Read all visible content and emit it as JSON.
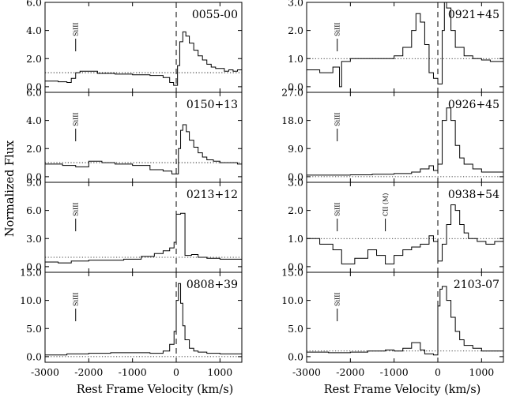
{
  "figure": {
    "ylabel": "Normalized Flux",
    "xlabel": "Rest Frame Velocity (km/s)"
  },
  "chart_data": [
    {
      "type": "line",
      "column": "left",
      "row": 0,
      "name": "0055-00",
      "xlim": [
        -3000,
        1500
      ],
      "ylim": [
        -0.4,
        6.0
      ],
      "ytick_values": [
        0,
        2,
        4,
        6
      ],
      "yticks": [
        "0.0",
        "2.0",
        "4.0",
        "6.0"
      ],
      "continuum": 1.0,
      "lines": [
        {
          "label": "SiIII",
          "velocity": -2300
        }
      ],
      "x": [
        -3000,
        -2700,
        -2500,
        -2400,
        -2300,
        -2200,
        -2100,
        -1800,
        -1400,
        -1000,
        -600,
        -300,
        -150,
        -60,
        30,
        80,
        150,
        220,
        300,
        400,
        500,
        600,
        700,
        800,
        900,
        1000,
        1100,
        1200,
        1300,
        1400,
        1500
      ],
      "y": [
        0.4,
        0.35,
        0.3,
        0.6,
        1.0,
        1.1,
        1.1,
        0.95,
        0.9,
        0.85,
        0.8,
        0.65,
        0.3,
        0.1,
        1.5,
        3.2,
        3.9,
        3.6,
        3.1,
        2.6,
        2.2,
        1.9,
        1.6,
        1.4,
        1.3,
        1.3,
        1.1,
        1.2,
        1.1,
        1.2,
        1.3
      ]
    },
    {
      "type": "line",
      "column": "left",
      "row": 1,
      "name": "0150+13",
      "xlim": [
        -3000,
        1500
      ],
      "ylim": [
        -0.4,
        6.0
      ],
      "ytick_values": [
        0,
        2,
        4,
        6
      ],
      "yticks": [
        "0.0",
        "2.0",
        "4.0",
        "6.0"
      ],
      "continuum": 1.0,
      "lines": [
        {
          "label": "SiIII",
          "velocity": -2300
        }
      ],
      "x": [
        -3000,
        -2600,
        -2300,
        -2000,
        -1700,
        -1400,
        -1000,
        -600,
        -300,
        -100,
        50,
        100,
        150,
        230,
        300,
        400,
        500,
        600,
        700,
        850,
        1000,
        1200,
        1400,
        1500
      ],
      "y": [
        0.9,
        0.8,
        0.7,
        1.1,
        1.0,
        0.9,
        0.8,
        0.5,
        0.4,
        0.2,
        2.0,
        3.3,
        3.7,
        3.2,
        2.6,
        2.1,
        1.7,
        1.4,
        1.2,
        1.1,
        1.0,
        1.0,
        0.9,
        0.9
      ]
    },
    {
      "type": "line",
      "column": "left",
      "row": 2,
      "name": "0213+12",
      "xlim": [
        -3000,
        1500
      ],
      "ylim": [
        -0.6,
        9.0
      ],
      "ytick_values": [
        0,
        3,
        6,
        9
      ],
      "yticks": [
        "0.0",
        "3.0",
        "6.0",
        "9.0"
      ],
      "continuum": 1.0,
      "lines": [
        {
          "label": "SiIII",
          "velocity": -2300
        }
      ],
      "x": [
        -3000,
        -2700,
        -2400,
        -2000,
        -1600,
        -1200,
        -800,
        -500,
        -300,
        -150,
        -50,
        0,
        100,
        200,
        350,
        500,
        700,
        1000,
        1500
      ],
      "y": [
        0.5,
        0.4,
        0.6,
        0.7,
        0.7,
        0.8,
        1.1,
        1.4,
        1.7,
        2.0,
        2.6,
        5.6,
        5.7,
        1.2,
        1.3,
        1.0,
        0.9,
        0.8,
        0.6
      ]
    },
    {
      "type": "line",
      "column": "left",
      "row": 3,
      "name": "0808+39",
      "xlim": [
        -3000,
        1500
      ],
      "ylim": [
        -1.0,
        15.0
      ],
      "ytick_values": [
        0,
        5,
        10,
        15
      ],
      "yticks": [
        "0.0",
        "5.0",
        "10.0",
        "15.0"
      ],
      "continuum": 0.0,
      "lines": [
        {
          "label": "SiIII",
          "velocity": -2300
        }
      ],
      "x": [
        -3000,
        -2500,
        -2000,
        -1500,
        -1000,
        -600,
        -300,
        -150,
        -50,
        0,
        50,
        100,
        150,
        200,
        300,
        400,
        500,
        700,
        1000,
        1500
      ],
      "y": [
        0.3,
        0.5,
        0.6,
        0.7,
        0.7,
        0.6,
        1.0,
        2.2,
        4.5,
        10.0,
        13.0,
        9.5,
        5.5,
        3.0,
        1.5,
        1.0,
        0.8,
        0.6,
        0.5,
        0.4
      ]
    },
    {
      "type": "line",
      "column": "right",
      "row": 0,
      "name": "0921+45",
      "xlim": [
        -3000,
        1500
      ],
      "ylim": [
        -0.2,
        3.0
      ],
      "ytick_values": [
        0,
        1,
        2,
        3
      ],
      "yticks": [
        "0.0",
        "1.0",
        "2.0",
        "3.0"
      ],
      "continuum": 1.0,
      "lines": [
        {
          "label": "SiIII",
          "velocity": -2300
        }
      ],
      "x": [
        -3000,
        -2700,
        -2400,
        -2250,
        -2200,
        -2000,
        -1500,
        -1000,
        -800,
        -600,
        -500,
        -400,
        -300,
        -200,
        -100,
        0,
        100,
        150,
        200,
        300,
        400,
        600,
        800,
        1000,
        1200,
        1500
      ],
      "y": [
        0.6,
        0.5,
        0.7,
        0.0,
        0.9,
        1.0,
        1.0,
        1.1,
        1.4,
        2.0,
        2.6,
        2.3,
        1.5,
        0.5,
        0.3,
        0.1,
        2.0,
        3.0,
        2.8,
        2.0,
        1.4,
        1.1,
        1.0,
        0.95,
        0.9,
        0.9
      ]
    },
    {
      "type": "line",
      "column": "right",
      "row": 1,
      "name": "0926+45",
      "xlim": [
        -3000,
        1500
      ],
      "ylim": [
        -1.8,
        27.0
      ],
      "ytick_values": [
        0,
        9,
        18,
        27
      ],
      "yticks": [
        "0.0",
        "9.0",
        "18.0",
        "27.0"
      ],
      "continuum": 0.0,
      "lines": [
        {
          "label": "SiIII",
          "velocity": -2300
        }
      ],
      "x": [
        -3000,
        -2000,
        -1500,
        -1000,
        -600,
        -400,
        -200,
        -100,
        0,
        100,
        200,
        300,
        400,
        500,
        600,
        800,
        1000,
        1500
      ],
      "y": [
        0.5,
        0.6,
        0.8,
        1.0,
        1.5,
        2.5,
        3.5,
        2.0,
        4.0,
        18.0,
        22.0,
        18.0,
        10.0,
        6.0,
        4.0,
        2.5,
        1.5,
        1.0
      ]
    },
    {
      "type": "line",
      "column": "right",
      "row": 2,
      "name": "0938+54",
      "xlim": [
        -3000,
        1500
      ],
      "ylim": [
        -0.2,
        3.0
      ],
      "ytick_values": [
        0,
        1,
        2,
        3
      ],
      "yticks": [
        "0.0",
        "1.0",
        "2.0",
        "3.0"
      ],
      "continuum": 1.0,
      "lines": [
        {
          "label": "SiIII",
          "velocity": -2300
        },
        {
          "label": "CII (M)",
          "velocity": -1200
        }
      ],
      "x": [
        -3000,
        -2700,
        -2400,
        -2200,
        -1900,
        -1600,
        -1400,
        -1200,
        -1000,
        -800,
        -600,
        -400,
        -200,
        -100,
        0,
        100,
        200,
        300,
        400,
        500,
        600,
        700,
        900,
        1100,
        1300,
        1500
      ],
      "y": [
        1.0,
        0.8,
        0.6,
        0.1,
        0.3,
        0.6,
        0.4,
        0.1,
        0.4,
        0.6,
        0.7,
        0.8,
        1.1,
        0.9,
        0.2,
        0.8,
        1.5,
        2.2,
        2.0,
        1.5,
        1.2,
        1.0,
        0.9,
        0.8,
        0.9,
        0.95
      ]
    },
    {
      "type": "line",
      "column": "right",
      "row": 3,
      "name": "2103-07",
      "xlim": [
        -3000,
        1500
      ],
      "ylim": [
        -1.0,
        15.0
      ],
      "ytick_values": [
        0,
        5,
        10,
        15
      ],
      "yticks": [
        "0.0",
        "5.0",
        "10.0",
        "15.0"
      ],
      "continuum": 1.0,
      "lines": [
        {
          "label": "SiIII",
          "velocity": -2300
        }
      ],
      "x": [
        -3000,
        -2500,
        -2000,
        -1600,
        -1200,
        -1000,
        -800,
        -600,
        -400,
        -300,
        -100,
        0,
        50,
        100,
        200,
        300,
        400,
        500,
        600,
        800,
        1000,
        1500
      ],
      "y": [
        0.8,
        0.7,
        0.8,
        1.0,
        1.2,
        1.0,
        1.5,
        2.5,
        1.2,
        0.5,
        0.3,
        9.0,
        12.0,
        12.5,
        10.0,
        7.0,
        4.5,
        3.0,
        2.0,
        1.5,
        1.0,
        0.8
      ]
    }
  ]
}
